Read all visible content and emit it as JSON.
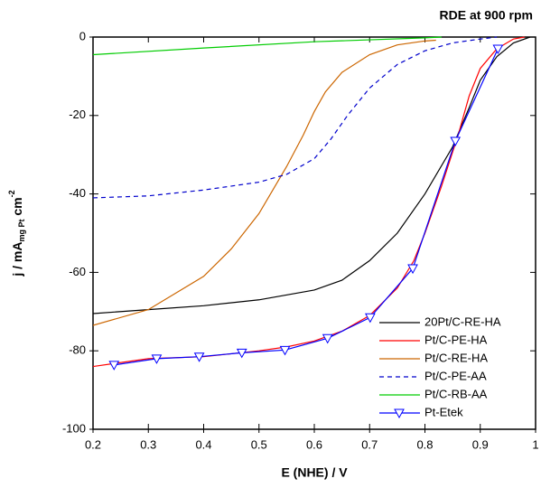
{
  "chart_data": {
    "type": "line",
    "title": "RDE at 900 rpm",
    "xlabel": "E (NHE) / V",
    "ylabel": {
      "main": "j / mA",
      "sub": "mg Pt",
      "unit": " cm",
      "sup": "-2"
    },
    "xlim": [
      0.2,
      1
    ],
    "ylim": [
      -100,
      0
    ],
    "xticks": [
      0.2,
      0.3,
      0.4,
      0.5,
      0.6,
      0.7,
      0.8,
      0.9,
      1
    ],
    "yticks": [
      -100,
      -80,
      -60,
      -40,
      -20,
      0
    ],
    "legend": "lower right",
    "series": [
      {
        "name": "20Pt/C-RE-HA",
        "color": "#000000",
        "dash": "solid",
        "x": [
          0.2,
          0.3,
          0.4,
          0.5,
          0.6,
          0.65,
          0.7,
          0.75,
          0.8,
          0.85,
          0.88,
          0.9,
          0.93,
          0.96,
          0.99
        ],
        "values": [
          -70.5,
          -69.5,
          -68.5,
          -67,
          -64.5,
          -62,
          -57,
          -50,
          -40,
          -28,
          -18,
          -11,
          -5,
          -1.5,
          0
        ]
      },
      {
        "name": "Pt/C-PE-HA",
        "color": "#ff0000",
        "dash": "solid",
        "x": [
          0.2,
          0.3,
          0.4,
          0.5,
          0.55,
          0.6,
          0.65,
          0.7,
          0.75,
          0.78,
          0.8,
          0.83,
          0.86,
          0.88,
          0.9,
          0.93,
          0.96,
          0.98
        ],
        "values": [
          -84,
          -82,
          -81.5,
          -80,
          -79,
          -77.5,
          -75,
          -71,
          -64,
          -57,
          -50,
          -38,
          -25,
          -15,
          -8,
          -3,
          -0.5,
          0
        ]
      },
      {
        "name": "Pt/C-RE-HA",
        "color": "#cc6600",
        "dash": "solid",
        "x": [
          0.2,
          0.3,
          0.4,
          0.45,
          0.5,
          0.55,
          0.58,
          0.6,
          0.62,
          0.65,
          0.7,
          0.75,
          0.8,
          0.82
        ],
        "values": [
          -73.5,
          -69.5,
          -61,
          -54,
          -45,
          -33,
          -25,
          -19,
          -14,
          -9,
          -4.5,
          -2,
          -1,
          -0.8
        ]
      },
      {
        "name": "Pt/C-PE-AA",
        "color": "#0000cc",
        "dash": "dashed",
        "x": [
          0.2,
          0.3,
          0.4,
          0.5,
          0.55,
          0.6,
          0.63,
          0.66,
          0.7,
          0.75,
          0.8,
          0.85,
          0.9,
          0.93
        ],
        "values": [
          -41,
          -40.5,
          -39,
          -37,
          -35,
          -31,
          -26,
          -20,
          -13,
          -7,
          -3.5,
          -1.5,
          -0.5,
          0
        ]
      },
      {
        "name": "Pt/C-RB-AA",
        "color": "#00cc00",
        "dash": "solid",
        "x": [
          0.2,
          0.4,
          0.6,
          0.8,
          0.83
        ],
        "values": [
          -4.5,
          -2.8,
          -1.2,
          -0.2,
          0
        ]
      },
      {
        "name": "Pt-Etek",
        "color": "#0000ff",
        "dash": "solid",
        "marker": "triangle-down",
        "x": [
          0.238,
          0.315,
          0.392,
          0.469,
          0.547,
          0.624,
          0.701,
          0.778,
          0.855,
          0.932
        ],
        "values": [
          -83.6,
          -82,
          -81.5,
          -80.5,
          -79.8,
          -76.8,
          -71.5,
          -59,
          -26.5,
          -3
        ]
      }
    ]
  }
}
